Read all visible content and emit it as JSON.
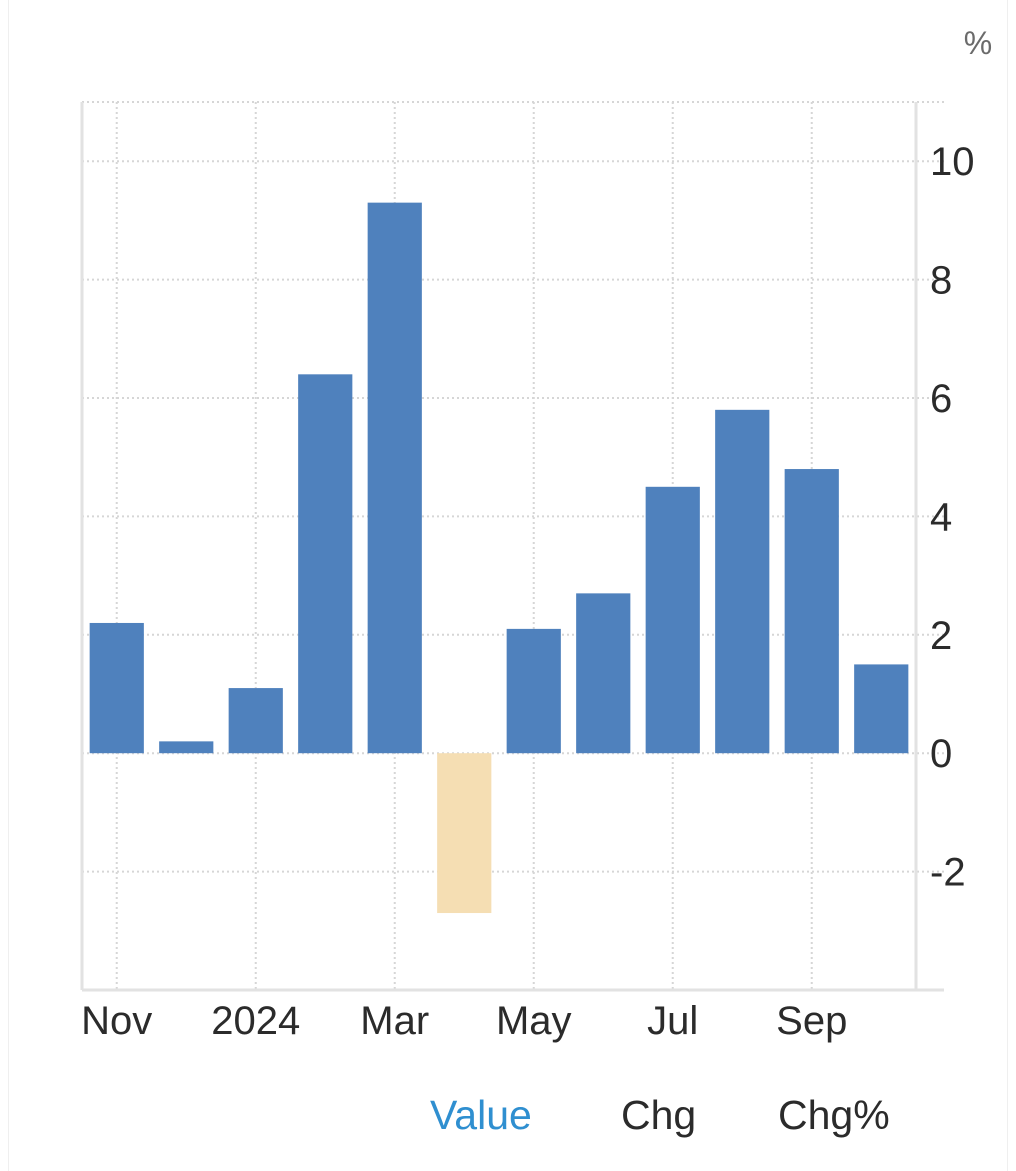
{
  "chart_data": {
    "type": "bar",
    "unit_label": "%",
    "categories": [
      "Nov",
      "Dec",
      "2024",
      "Feb",
      "Mar",
      "Apr",
      "May",
      "Jun",
      "Jul",
      "Aug",
      "Sep",
      "Oct"
    ],
    "values": [
      2.2,
      0.2,
      1.1,
      6.4,
      9.3,
      -2.7,
      2.1,
      2.7,
      4.5,
      5.8,
      4.8,
      1.5
    ],
    "x_tick_labels": [
      {
        "index": 0,
        "label": "Nov"
      },
      {
        "index": 2,
        "label": "2024"
      },
      {
        "index": 4,
        "label": "Mar"
      },
      {
        "index": 6,
        "label": "May"
      },
      {
        "index": 8,
        "label": "Jul"
      },
      {
        "index": 10,
        "label": "Sep"
      }
    ],
    "y_ticks": [
      -2,
      0,
      2,
      4,
      6,
      8,
      10
    ],
    "ylim": [
      -4,
      11
    ],
    "y_axis_side": "right",
    "grid": true,
    "colors": {
      "positive": "#4f81bd",
      "negative": "#f5deb3",
      "grid": "#d6d6d6",
      "axis": "#e2e2e2",
      "text": "#2b2b2b"
    }
  },
  "tabs": [
    {
      "label": "Value",
      "active": true
    },
    {
      "label": "Chg",
      "active": false
    },
    {
      "label": "Chg%",
      "active": false
    }
  ]
}
